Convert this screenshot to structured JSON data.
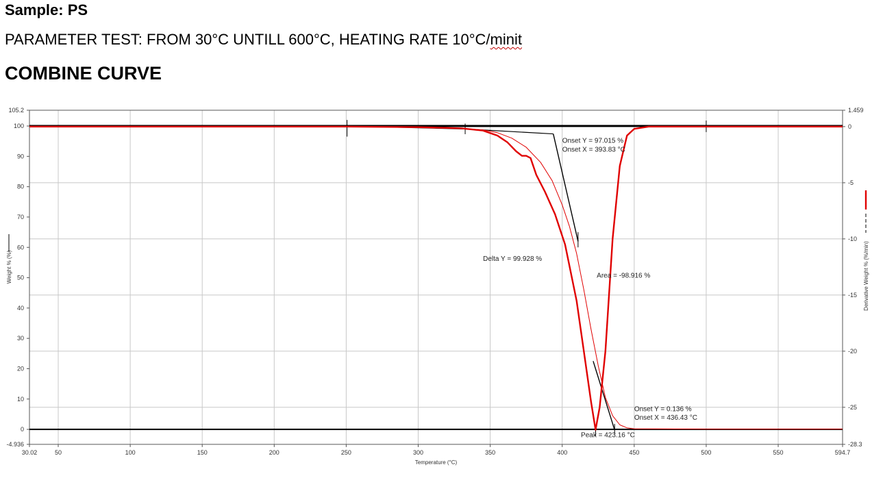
{
  "header": {
    "sample": "Sample: PS",
    "parameter_main": "PARAMETER TEST: FROM 30°C UNTILL 600°C, HEATING RATE 10°C/",
    "parameter_unit": "minit",
    "combine": "COMBINE CURVE"
  },
  "chart_data": {
    "type": "line",
    "xlabel": "Temperature (°C)",
    "ylabel": "Weight % (%)",
    "y2label": "Derivative Weight % (%/min)",
    "xlim": [
      30.02,
      594.7
    ],
    "ylim": [
      -4.936,
      105.2
    ],
    "y2lim": [
      -28.3,
      1.459
    ],
    "x_ticks": [
      "30.02",
      "50",
      "100",
      "150",
      "200",
      "250",
      "300",
      "350",
      "400",
      "450",
      "500",
      "550",
      "594.7"
    ],
    "y_ticks": [
      "105.2",
      "100",
      "90",
      "80",
      "70",
      "60",
      "50",
      "40",
      "30",
      "20",
      "10",
      "0",
      "-4.936"
    ],
    "y2_ticks": [
      "1.459",
      "0",
      "-5",
      "-10",
      "-15",
      "-20",
      "-25",
      "-28.3"
    ],
    "grid": true,
    "series": [
      {
        "axis": "left",
        "color": "#e00000",
        "x": [
          30,
          100,
          200,
          300,
          330,
          345,
          355,
          365,
          375,
          385,
          393,
          400,
          405,
          410,
          415,
          420,
          425,
          430,
          435,
          440,
          445,
          450,
          500,
          594.7
        ],
        "y": [
          99.9,
          99.9,
          99.9,
          99.6,
          99.2,
          98.7,
          97.8,
          96.0,
          93.0,
          88.0,
          82.0,
          74.0,
          67.0,
          58.0,
          46.0,
          33.0,
          21.0,
          10.5,
          4.5,
          1.5,
          0.5,
          0.2,
          0.1,
          0.1
        ]
      },
      {
        "axis": "right",
        "color": "#e00000",
        "x": [
          30,
          250,
          300,
          330,
          345,
          355,
          362,
          368,
          372,
          375,
          378,
          382,
          388,
          395,
          402,
          410,
          415,
          420,
          423.16,
          426,
          430,
          435,
          440,
          445,
          450,
          460,
          500,
          594.7
        ],
        "y": [
          0,
          0,
          -0.05,
          -0.15,
          -0.35,
          -0.8,
          -1.4,
          -2.2,
          -2.6,
          -2.6,
          -2.8,
          -4.3,
          -5.8,
          -7.8,
          -10.5,
          -15.5,
          -20.0,
          -24.5,
          -27.0,
          -25.0,
          -20.0,
          -10.0,
          -3.5,
          -0.8,
          -0.2,
          0,
          0,
          0
        ]
      }
    ],
    "annotations": [
      {
        "text": "Onset Y = 97.015 %",
        "x": 400,
        "y": 94.5
      },
      {
        "text": "Onset X = 393.83 °C",
        "x": 400,
        "y": 91.5
      },
      {
        "text": "Delta Y = 99.928 %",
        "x": 345,
        "y": 55.5
      },
      {
        "text": "Area = -98.916 %",
        "x": 424,
        "y": 50
      },
      {
        "text": "Onset Y = 0.136 %",
        "x": 450,
        "y": 6
      },
      {
        "text": "Onset X = 436.43 °C",
        "x": 450,
        "y": 3.2
      },
      {
        "text": "Peak = 423.16 °C",
        "x": 413,
        "y": -2.6
      }
    ]
  }
}
